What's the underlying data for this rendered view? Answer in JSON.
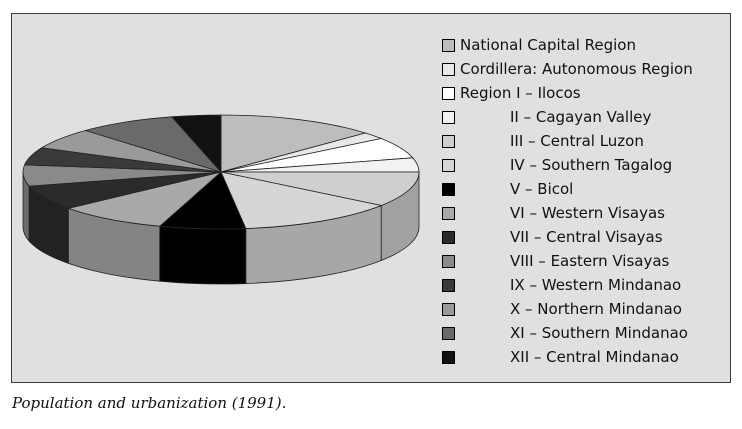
{
  "caption": "Population and urbanization (1991).",
  "chart_data": {
    "type": "pie",
    "style": "3d-exploded-perspective",
    "title": "",
    "categories": [
      "National Capital Region",
      "Cordillera: Autonomous Region",
      "Region I – Ilocos",
      "II – Cagayan Valley",
      "III – Central Luzon",
      "IV – Southern Tagalog",
      "V – Bicol",
      "VI – Western Visayas",
      "VII – Central Visayas",
      "VIII – Eastern Visayas",
      "IX – Western Mindanao",
      "X – Northern Mindanao",
      "XI – Southern Mindanao",
      "XII – Central Mindanao"
    ],
    "values": [
      13,
      2,
      6,
      4,
      10,
      13,
      7,
      9,
      7,
      6,
      5,
      6,
      8,
      4
    ],
    "colors": [
      "#bdbdbd",
      "#e8e8e8",
      "#ffffff",
      "#f2f2f2",
      "#cfcfcf",
      "#d6d6d6",
      "#000000",
      "#a9a9a9",
      "#2b2b2b",
      "#8a8a8a",
      "#3a3a3a",
      "#9a9a9a",
      "#6a6a6a",
      "#111111"
    ],
    "legend_position": "right"
  }
}
